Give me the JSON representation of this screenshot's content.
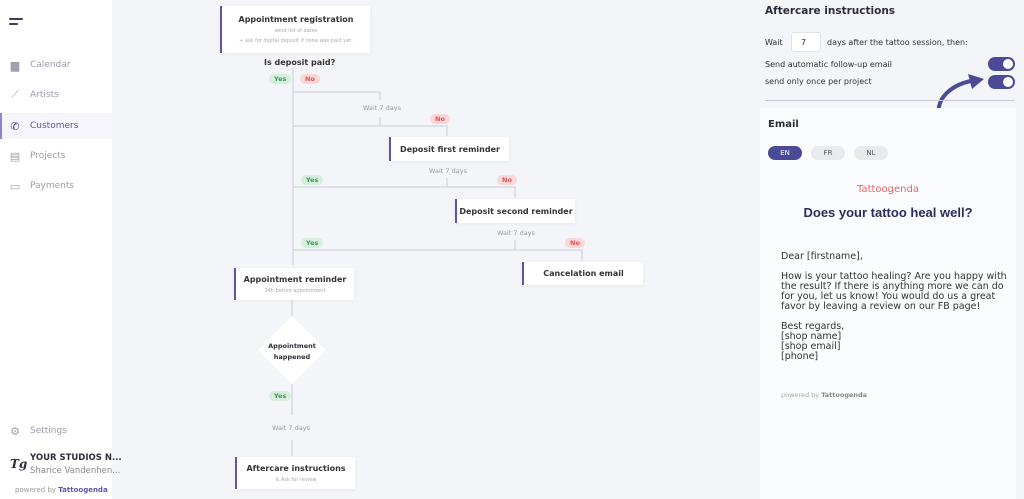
{
  "sidebar": {
    "items": [
      {
        "label": "Calendar",
        "icon": "calendar-icon"
      },
      {
        "label": "Artists",
        "icon": "brush-icon"
      },
      {
        "label": "Customers",
        "icon": "phone-icon",
        "active": true
      },
      {
        "label": "Projects",
        "icon": "documents-icon"
      },
      {
        "label": "Payments",
        "icon": "card-icon"
      }
    ],
    "settings": "Settings",
    "studio_name": "YOUR STUDIOS N...",
    "user_name": "Sharice Vandenhen...",
    "logo": "Tg",
    "powered_prefix": "powered by",
    "powered_brand": "Tattoogenda"
  },
  "flow": {
    "registration": {
      "title": "Appointment registration",
      "line1": "send list of dates",
      "line2": "+ ask for digital deposit if none was paid yet."
    },
    "question": "Is deposit paid?",
    "yes": "Yes",
    "no": "No",
    "wait": "Wait 7 days",
    "first_reminder": "Deposit first reminder",
    "second_reminder": "Deposit second reminder",
    "cancel": "Cancelation email",
    "appt_reminder": {
      "title": "Appointment reminder",
      "sub": "24h before appointment"
    },
    "happened": "Appointment happened",
    "aftercare": {
      "title": "Aftercare instructions",
      "sub": "& Ask for review"
    }
  },
  "panel": {
    "title": "Aftercare instructions",
    "wait_label": "Wait",
    "wait_value": "7",
    "wait_suffix": "days after the tattoo session, then:",
    "toggle1": {
      "label": "Send automatic follow-up email",
      "on": true
    },
    "toggle2": {
      "label": "send only once per project",
      "on": true
    },
    "email_title": "Email",
    "languages": [
      "EN",
      "FR",
      "NL"
    ],
    "selected_language": "EN",
    "brand": "Tattoogenda",
    "headline": "Does your tattoo heal well?",
    "greeting": "Dear [firstname],",
    "message": "How is your tattoo healing? Are you happy with the result? If there is anything more we can do for you, let us know! You would do us a great favor by leaving a review on our FB page!",
    "signoff": "Best regards,\n[shop name]\n[shop email]\n[phone]",
    "powered_prefix": "powered by",
    "powered_brand": "Tattoogenda"
  },
  "colors": {
    "accent": "#4b4a96",
    "yes": "#3a9a5a",
    "no": "#e05555",
    "brand_red": "#e06666"
  }
}
